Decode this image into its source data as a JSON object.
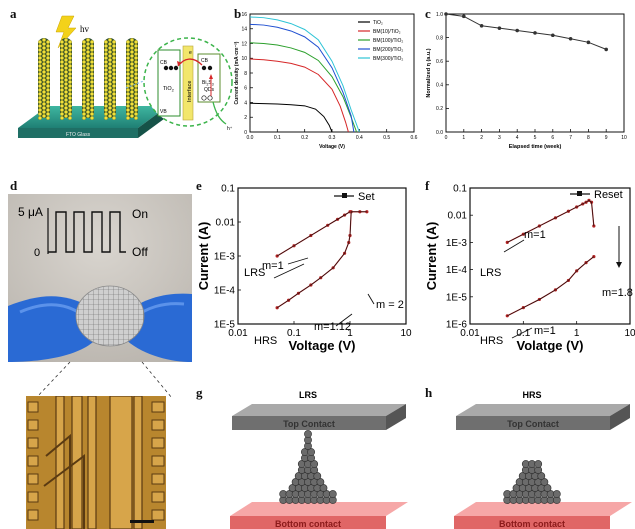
{
  "panel_letters": {
    "a": "a",
    "b": "b",
    "c": "c",
    "d": "d",
    "e": "e",
    "f": "f",
    "g": "g",
    "h": "h"
  },
  "panel_a": {
    "hv": "hv",
    "substrate": "FTO Glass",
    "cb": "CB",
    "vb": "VB",
    "tio2": "TiO",
    "tio2_sub": "2",
    "interface": "Interface",
    "bi2s3": "Bi",
    "bi2s3_rest": "S",
    "qds": "QDs",
    "e": "e",
    "h": "h⁺"
  },
  "chart_data": [
    {
      "id": "b",
      "type": "line",
      "xlabel": "Voltage (V)",
      "ylabel": "Current density (mA·cm⁻²)",
      "xlim": [
        0,
        0.6
      ],
      "ylim": [
        0,
        16
      ],
      "xticks": [
        "0.0",
        "0.1",
        "0.2",
        "0.3",
        "0.4",
        "0.5",
        "0.6"
      ],
      "yticks": [
        "0",
        "2",
        "4",
        "6",
        "8",
        "10",
        "12",
        "14",
        "16"
      ],
      "legend_position": "top-right",
      "series": [
        {
          "name": "TiO₂",
          "color": "#000000",
          "x": [
            0,
            0.05,
            0.1,
            0.15,
            0.2,
            0.24,
            0.27,
            0.29,
            0.3
          ],
          "y": [
            3.9,
            3.85,
            3.8,
            3.7,
            3.55,
            3.1,
            2.1,
            0.9,
            0
          ]
        },
        {
          "name": "BM(10)/TiO₂",
          "color": "#d62728",
          "x": [
            0,
            0.05,
            0.1,
            0.15,
            0.2,
            0.25,
            0.3,
            0.33,
            0.35,
            0.36
          ],
          "y": [
            9.9,
            9.8,
            9.6,
            9.3,
            8.8,
            7.8,
            5.8,
            3.5,
            1.3,
            0
          ]
        },
        {
          "name": "BM(100)/TiO₂",
          "color": "#2ca02c",
          "x": [
            0,
            0.05,
            0.1,
            0.15,
            0.2,
            0.25,
            0.3,
            0.34,
            0.37,
            0.39
          ],
          "y": [
            12.1,
            12.0,
            11.8,
            11.4,
            10.8,
            9.7,
            7.5,
            4.8,
            2.0,
            0
          ]
        },
        {
          "name": "BM(200)/TiO₂",
          "color": "#1f4fd1",
          "x": [
            0,
            0.05,
            0.1,
            0.15,
            0.2,
            0.25,
            0.3,
            0.34,
            0.37,
            0.38
          ],
          "y": [
            14.6,
            14.5,
            14.2,
            13.7,
            12.9,
            11.5,
            8.7,
            5.4,
            2.2,
            0
          ]
        },
        {
          "name": "BM(300)/TiO₂",
          "color": "#2ec4d6",
          "x": [
            0,
            0.05,
            0.1,
            0.15,
            0.2,
            0.25,
            0.3,
            0.34,
            0.37,
            0.4
          ],
          "y": [
            15.6,
            15.5,
            15.2,
            14.7,
            13.9,
            12.5,
            9.6,
            6.3,
            3.0,
            0
          ]
        }
      ]
    },
    {
      "id": "c",
      "type": "line",
      "xlabel": "Elapsed time (week)",
      "ylabel": "Normalized η (a.u.)",
      "xlim": [
        0,
        10
      ],
      "ylim": [
        0,
        1.0
      ],
      "xticks": [
        "0",
        "1",
        "2",
        "3",
        "4",
        "5",
        "6",
        "7",
        "8",
        "9",
        "10"
      ],
      "yticks": [
        "0.0",
        "0.2",
        "0.4",
        "0.6",
        "0.8",
        "1.0"
      ],
      "series": [
        {
          "name": "",
          "color": "#333333",
          "x": [
            0,
            1,
            2,
            3,
            4,
            5,
            6,
            7,
            8,
            9
          ],
          "y": [
            1.0,
            0.98,
            0.9,
            0.88,
            0.86,
            0.84,
            0.82,
            0.79,
            0.76,
            0.7
          ]
        }
      ]
    },
    {
      "id": "e",
      "type": "line",
      "scale": "log-log",
      "xlabel": "Voltage (V)",
      "ylabel": "Current (A)",
      "xlim": [
        0.01,
        10
      ],
      "ylim": [
        1e-05,
        0.1
      ],
      "xticks": [
        "0.01",
        "0.1",
        "1",
        "10"
      ],
      "yticks": [
        "1E-5",
        "1E-4",
        "1E-3",
        "0.01",
        "0.1"
      ],
      "legend_position": "top-right",
      "legend": "Set",
      "annotations": [
        "LRS",
        "HRS",
        "m=1",
        "m = 2",
        "m=1.12"
      ],
      "series": [
        {
          "name": "Set",
          "color": "#b22222",
          "x": [
            0.05,
            0.08,
            0.12,
            0.2,
            0.3,
            0.5,
            0.8,
            0.95,
            1.0,
            1.05,
            1.5,
            2.0
          ],
          "y": [
            3e-05,
            5e-05,
            8e-05,
            0.00014,
            0.00023,
            0.00045,
            0.0012,
            0.0025,
            0.004,
            0.02,
            0.02,
            0.02
          ]
        },
        {
          "name": "",
          "color": "#b22222",
          "x": [
            0.05,
            0.1,
            0.2,
            0.4,
            0.6,
            0.8,
            1.0
          ],
          "y": [
            0.001,
            0.002,
            0.004,
            0.008,
            0.012,
            0.016,
            0.02
          ]
        }
      ]
    },
    {
      "id": "f",
      "type": "line",
      "scale": "log-log",
      "xlabel": "Volatge (V)",
      "ylabel": "Current (A)",
      "xlim": [
        0.01,
        10
      ],
      "ylim": [
        1e-06,
        0.1
      ],
      "xticks": [
        "0.01",
        "0.1",
        "1",
        "10"
      ],
      "yticks": [
        "1E-6",
        "1E-5",
        "1E-4",
        "1E-3",
        "0.01",
        "0.1"
      ],
      "legend_position": "top-right",
      "legend": "Reset",
      "annotations": [
        "LRS",
        "HRS",
        "m=1",
        "m=1.8",
        "m=1"
      ],
      "series": [
        {
          "name": "Reset",
          "color": "#b22222",
          "x": [
            0.05,
            0.1,
            0.2,
            0.4,
            0.7,
            1.0,
            1.3,
            1.5,
            1.7,
            1.9,
            2.1
          ],
          "y": [
            0.001,
            0.002,
            0.004,
            0.008,
            0.014,
            0.02,
            0.026,
            0.03,
            0.035,
            0.03,
            0.004
          ]
        },
        {
          "name": "",
          "color": "#b22222",
          "x": [
            0.05,
            0.1,
            0.2,
            0.4,
            0.7,
            1.0,
            1.5,
            2.1
          ],
          "y": [
            2e-06,
            4e-06,
            8e-06,
            1.8e-05,
            4e-05,
            9e-05,
            0.00018,
            0.0003
          ]
        }
      ]
    }
  ],
  "panel_d": {
    "scale": "5 μA",
    "on": "On",
    "off": "Off",
    "zero": "0"
  },
  "panel_g": {
    "state": "LRS",
    "top": "Top Contact",
    "bottom": "Bottom contact"
  },
  "panel_h": {
    "state": "HRS",
    "top": "Top Contact",
    "bottom": "Bottom contact"
  },
  "colors": {
    "red_trace": "#b22222",
    "top_plate": "#8a8a8a",
    "bottom_plate": "#f08080",
    "nanowire": "#2f4f2f"
  }
}
